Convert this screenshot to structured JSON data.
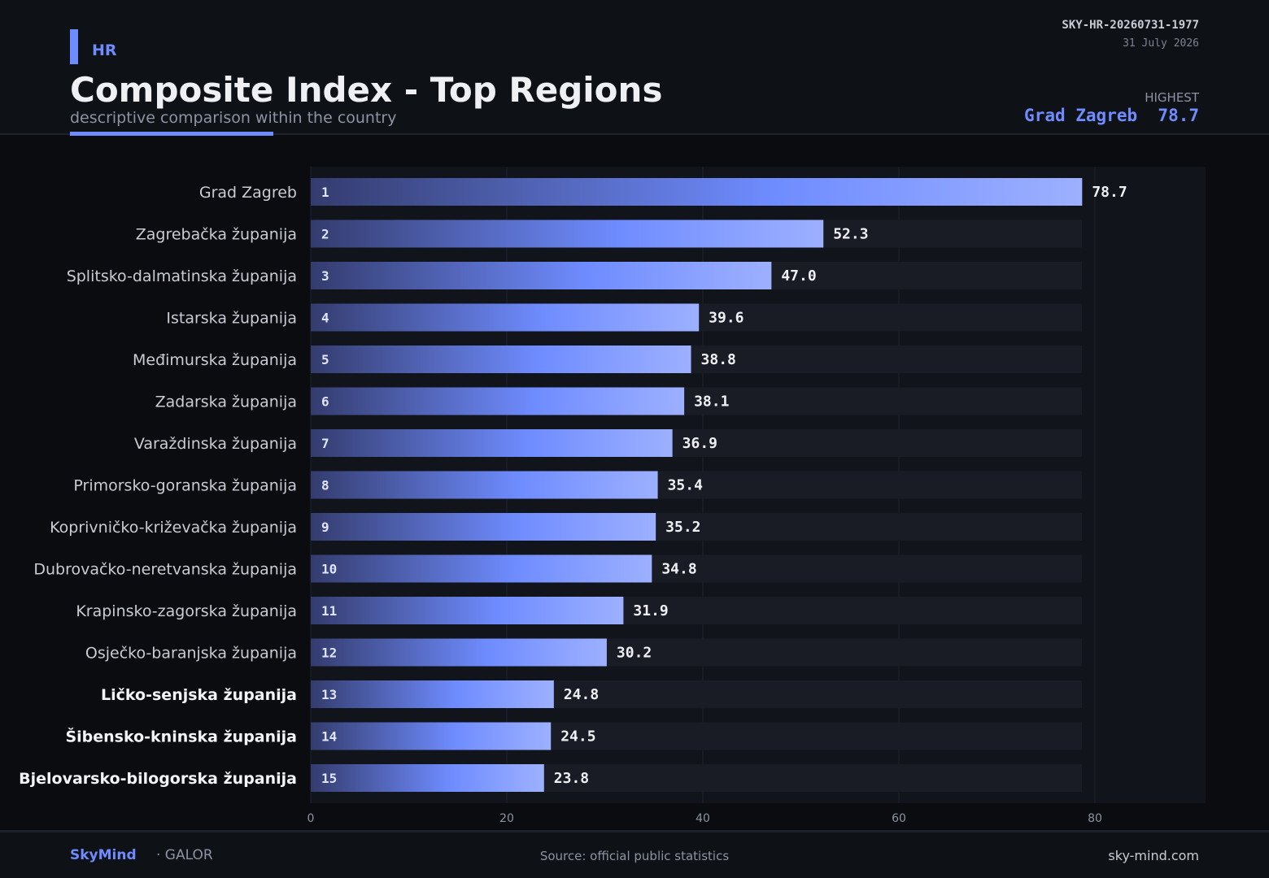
{
  "header": {
    "country": "HR",
    "title": "Composite Index - Top Regions",
    "subtitle": "descriptive comparison within the country",
    "report_id": "SKY-HR-20260731-1977",
    "date": "31 July 2026",
    "highest_label": "HIGHEST",
    "highest_region": "Grad Zagreb",
    "highest_value": "78.7"
  },
  "footer": {
    "brand": "SkyMind",
    "brand_sub": "· GALOR",
    "source": "Source: official public statistics",
    "site": "sky-mind.com"
  },
  "colors": {
    "accent": "#6f8cff",
    "bar_dark": "#343c6e",
    "bar_light": "#9db0ff",
    "track": "#191c24"
  },
  "chart_data": {
    "type": "bar",
    "orientation": "horizontal",
    "categories": [
      "Grad Zagreb",
      "Zagrebačka županija",
      "Splitsko-dalmatinska županija",
      "Istarska županija",
      "Međimurska županija",
      "Zadarska županija",
      "Varaždinska županija",
      "Primorsko-goranska županija",
      "Koprivničko-križevačka županija",
      "Dubrovačko-neretvanska županija",
      "Krapinsko-zagorska županija",
      "Osječko-baranjska županija",
      "Ličko-senjska županija",
      "Šibensko-kninska županija",
      "Bjelovarsko-bilogorska županija"
    ],
    "ranks": [
      "1",
      "2",
      "3",
      "4",
      "5",
      "6",
      "7",
      "8",
      "9",
      "10",
      "11",
      "12",
      "13",
      "14",
      "15"
    ],
    "values": [
      78.7,
      52.3,
      47.0,
      39.6,
      38.8,
      38.1,
      36.9,
      35.4,
      35.2,
      34.8,
      31.9,
      30.2,
      24.8,
      24.5,
      23.8
    ],
    "value_labels": [
      "78.7",
      "52.3",
      "47.0",
      "39.6",
      "38.8",
      "38.1",
      "36.9",
      "35.4",
      "35.2",
      "34.8",
      "31.9",
      "30.2",
      "24.8",
      "24.5",
      "23.8"
    ],
    "bold_categories": [
      12,
      13,
      14
    ],
    "xlim": [
      0,
      91.3
    ],
    "xticks": [
      0,
      20,
      40,
      60,
      80
    ],
    "xtick_labels": [
      "0",
      "20",
      "40",
      "60",
      "80"
    ],
    "xlabel": "",
    "ylabel": "",
    "grid": true
  }
}
